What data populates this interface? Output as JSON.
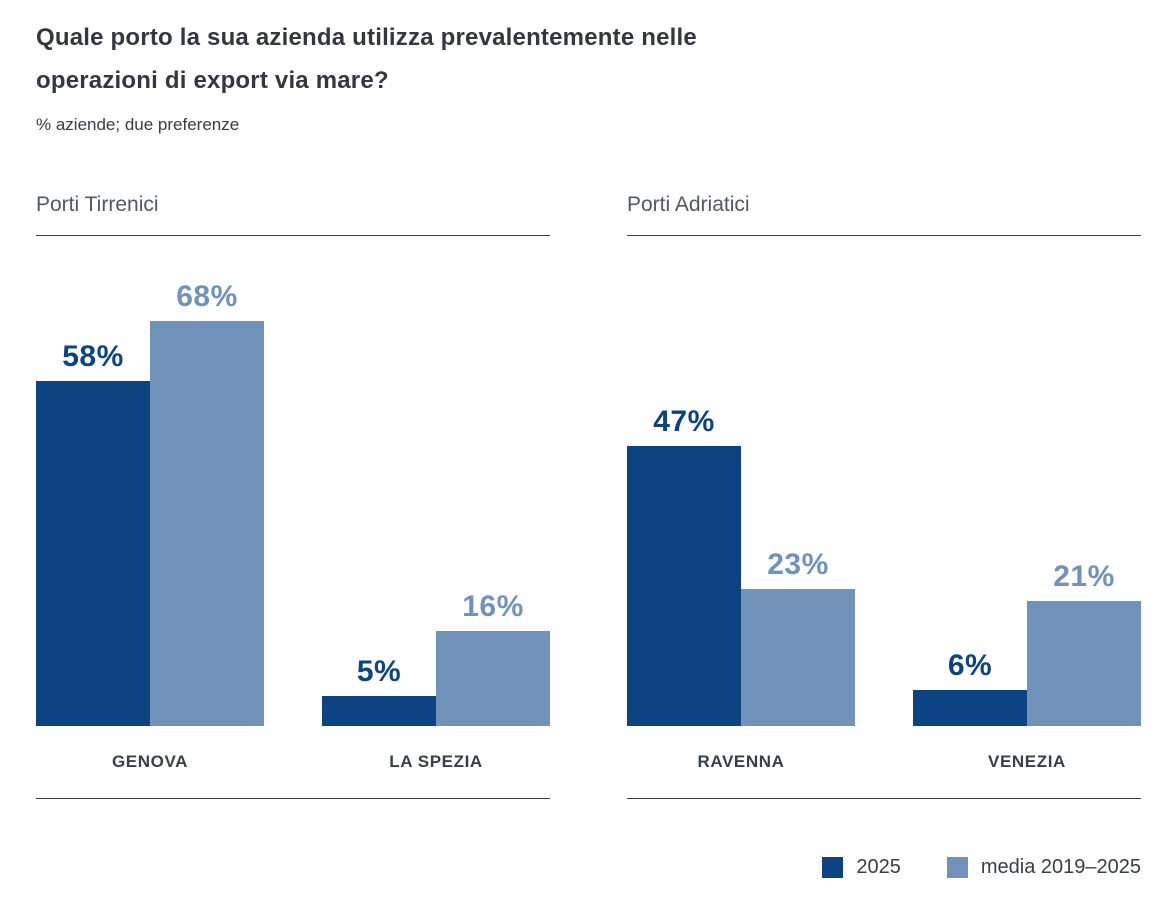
{
  "title": "Quale porto la sua azienda utilizza prevalentemente nelle operazioni di export via mare?",
  "subtitle": "% aziende; due preferenze",
  "chart_data": {
    "type": "bar",
    "title": "Quale porto la sua azienda utilizza prevalentemente nelle operazioni di export via mare?",
    "subtitle": "% aziende; due preferenze",
    "unit": "%",
    "value_labels": true,
    "axes": "none",
    "legend_position": "bottom-right",
    "groups": [
      {
        "label": "Porti Tirrenici",
        "categories": [
          "GENOVA",
          "LA SPEZIA"
        ],
        "series": [
          {
            "name": "2025",
            "values": [
              58,
              5
            ]
          },
          {
            "name": "media 2019–2025",
            "values": [
              68,
              16
            ]
          }
        ]
      },
      {
        "label": "Porti Adriatici",
        "categories": [
          "RAVENNA",
          "VENEZIA"
        ],
        "series": [
          {
            "name": "2025",
            "values": [
              47,
              6
            ]
          },
          {
            "name": "media 2019–2025",
            "values": [
              23,
              21
            ]
          }
        ]
      }
    ],
    "legend": [
      {
        "label": "2025",
        "color": "#0c4483"
      },
      {
        "label": "media 2019–2025",
        "color": "#7193b9"
      }
    ]
  },
  "colors": {
    "series_2025": "#0c4483",
    "series_media": "#7193b9",
    "title_text": "#35373c",
    "header_text": "#55585e",
    "category_text": "#3b3e44",
    "rule_line": "#3c3d40",
    "background": "#ffffff"
  }
}
